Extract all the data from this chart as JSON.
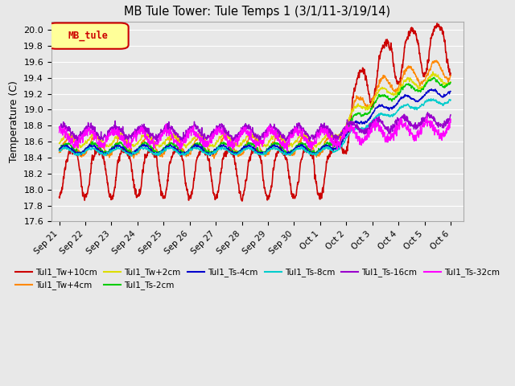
{
  "title": "MB Tule Tower: Tule Temps 1 (3/1/11-3/19/14)",
  "ylabel": "Temperature (C)",
  "ylim": [
    17.6,
    20.1
  ],
  "yticks": [
    17.6,
    17.8,
    18.0,
    18.2,
    18.4,
    18.6,
    18.8,
    19.0,
    19.2,
    19.4,
    19.6,
    19.8,
    20.0
  ],
  "legend_box_label": "MB_tule",
  "legend_box_facecolor": "#ffff99",
  "legend_box_edgecolor": "#cc0000",
  "series": [
    {
      "label": "Tul1_Tw+10cm",
      "color": "#cc0000",
      "lw": 1.2
    },
    {
      "label": "Tul1_Tw+4cm",
      "color": "#ff8800",
      "lw": 1.0
    },
    {
      "label": "Tul1_Tw+2cm",
      "color": "#dddd00",
      "lw": 1.0
    },
    {
      "label": "Tul1_Ts-2cm",
      "color": "#00cc00",
      "lw": 1.0
    },
    {
      "label": "Tul1_Ts-4cm",
      "color": "#0000cc",
      "lw": 1.0
    },
    {
      "label": "Tul1_Ts-8cm",
      "color": "#00cccc",
      "lw": 1.0
    },
    {
      "label": "Tul1_Ts-16cm",
      "color": "#9900cc",
      "lw": 1.0
    },
    {
      "label": "Tul1_Ts-32cm",
      "color": "#ff00ff",
      "lw": 1.0
    }
  ],
  "x_tick_labels": [
    "Sep 21",
    "Sep 22",
    "Sep 23",
    "Sep 24",
    "Sep 25",
    "Sep 26",
    "Sep 27",
    "Sep 28",
    "Sep 29",
    "Sep 30",
    "Oct 1",
    "Oct 2",
    "Oct 3",
    "Oct 4",
    "Oct 5",
    "Oct 6"
  ],
  "background_color": "#e8e8e8",
  "plot_bg_color": "#e8e8e8",
  "grid_color": "#ffffff"
}
